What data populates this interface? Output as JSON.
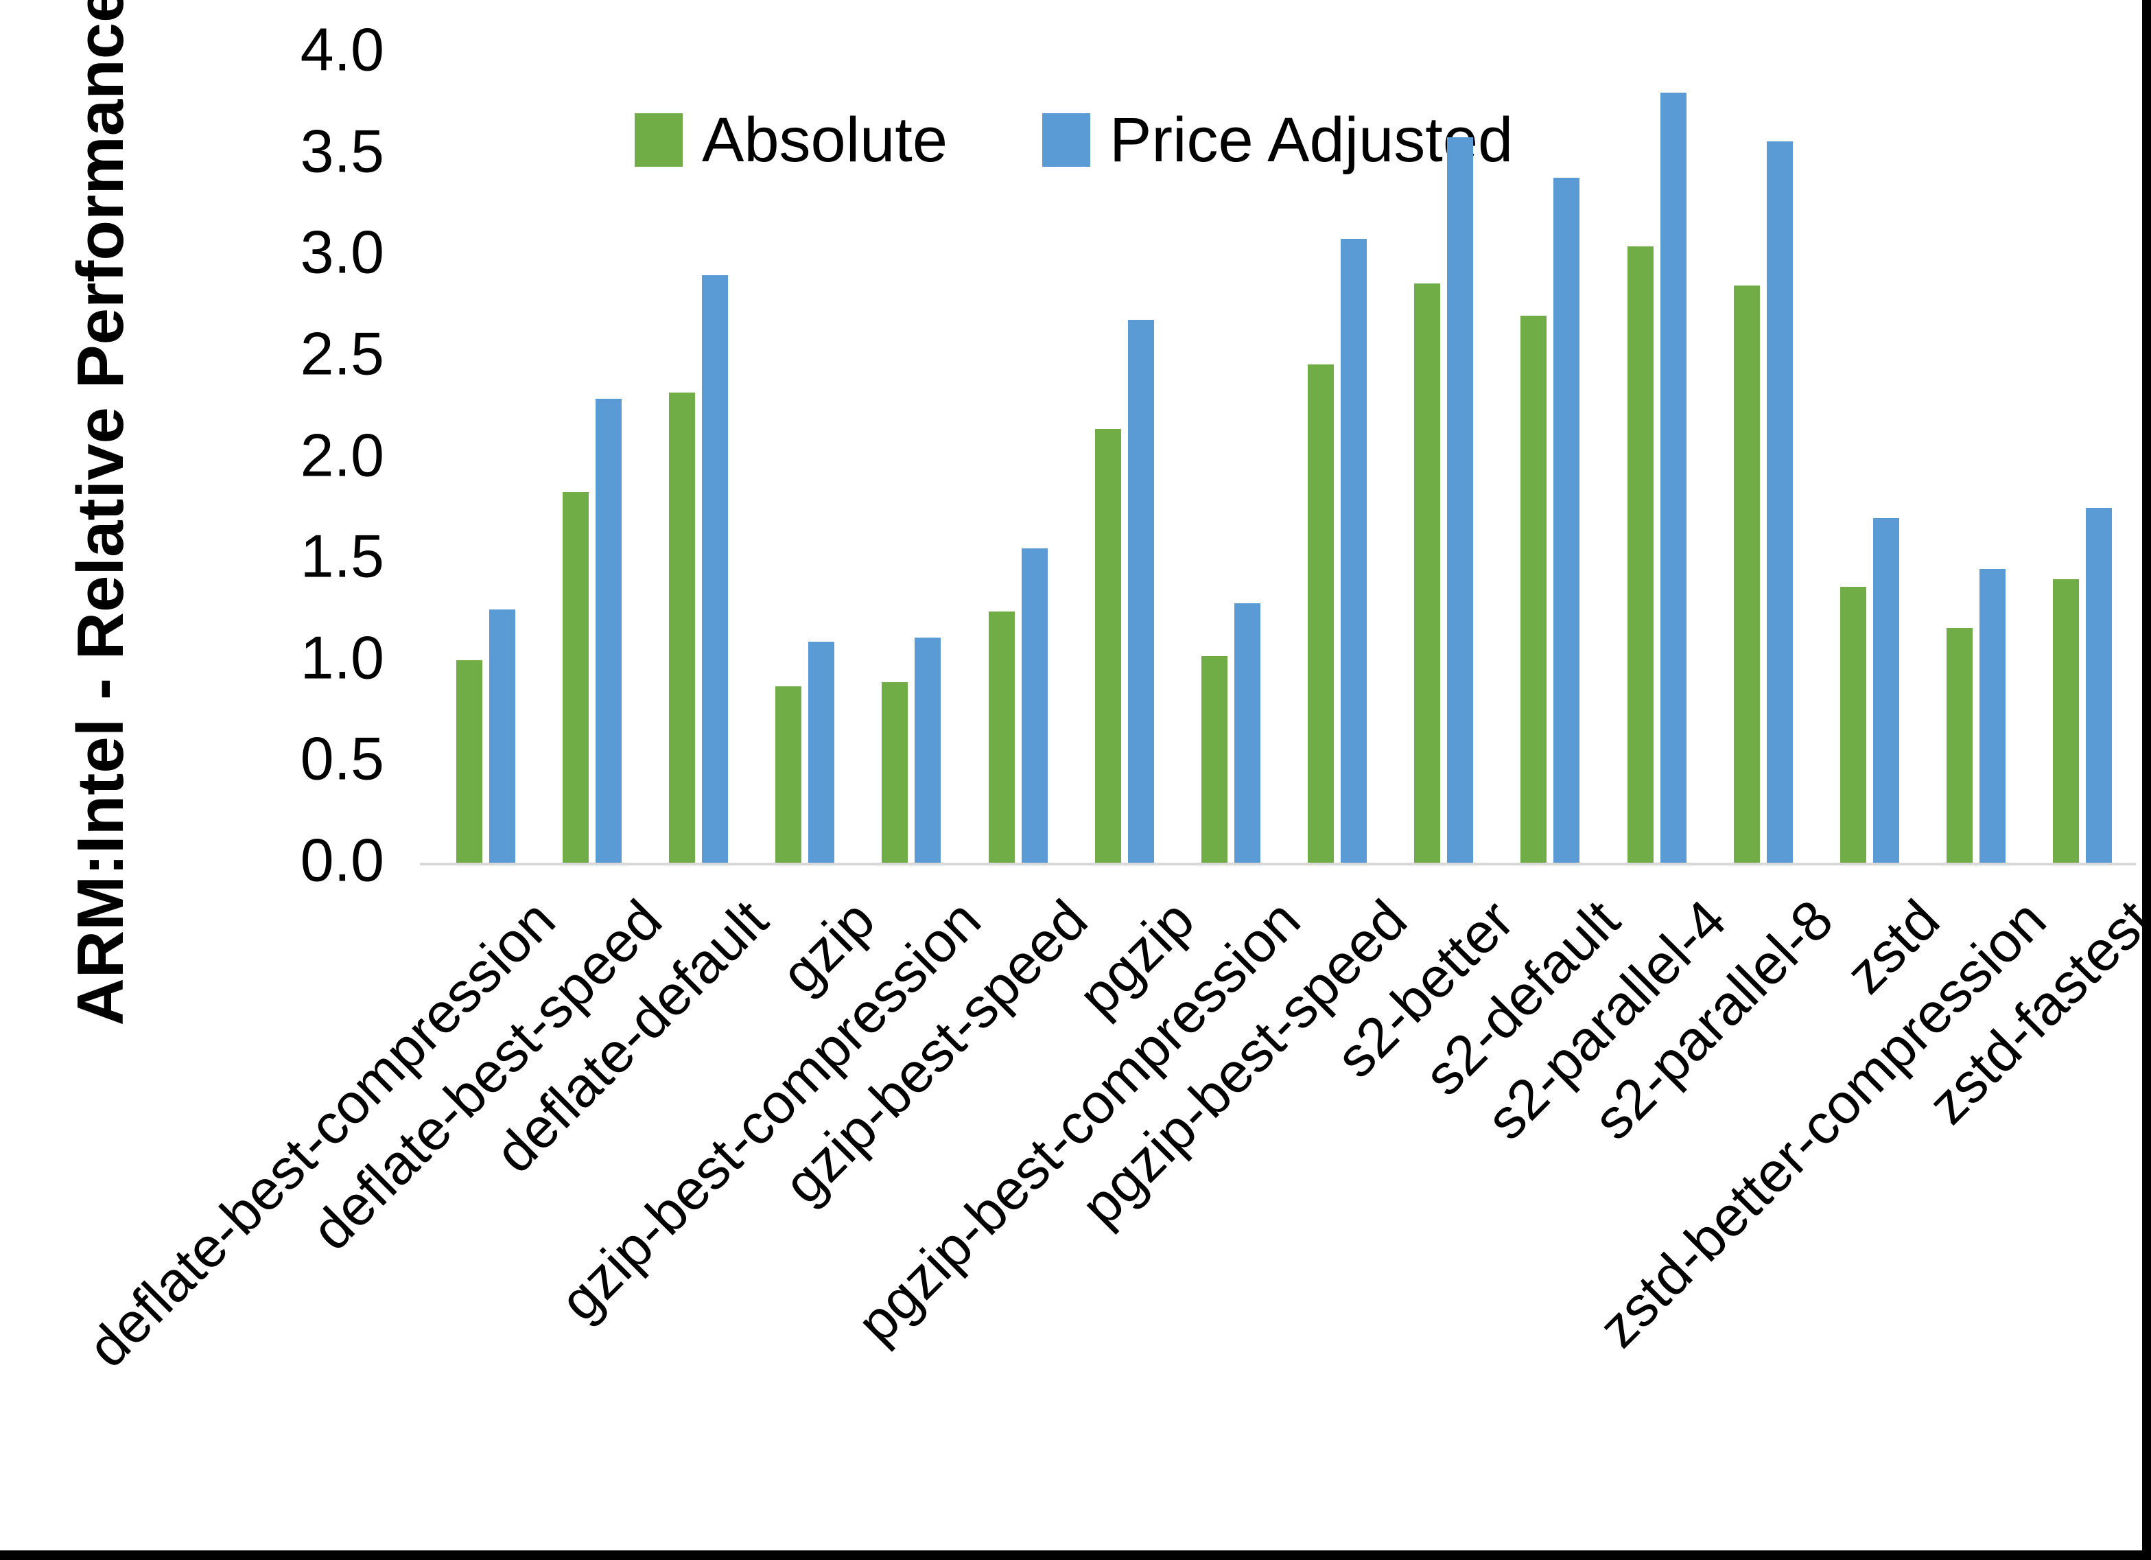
{
  "y_axis": {
    "title": "ARM:Intel - Relative Performance",
    "ticks": [
      "4.0",
      "3.5",
      "3.0",
      "2.5",
      "2.0",
      "1.5",
      "1.0",
      "0.5",
      "0.0"
    ],
    "min": 0.0,
    "max": 4.0
  },
  "legend": {
    "items": [
      {
        "label": "Absolute",
        "color": "#70AD47"
      },
      {
        "label": "Price Adjusted",
        "color": "#5B9BD5"
      }
    ],
    "position": "top"
  },
  "chart_data": {
    "type": "bar",
    "title": "",
    "xlabel": "",
    "ylabel": "ARM:Intel - Relative Performance",
    "ylim": [
      0.0,
      4.0
    ],
    "grid": false,
    "legend_position": "top",
    "categories": [
      "deflate-best-compression",
      "deflate-best-speed",
      "deflate-default",
      "gzip",
      "gzip-best-compression",
      "gzip-best-speed",
      "pgzip",
      "pgzip-best-compression",
      "pgzip-best-speed",
      "s2-better",
      "s2-default",
      "s2-parallel-4",
      "s2-parallel-8",
      "zstd",
      "zstd-better-compression",
      "zstd-fastest"
    ],
    "series": [
      {
        "name": "Absolute",
        "color": "#70AD47",
        "values": [
          1.0,
          1.83,
          2.32,
          0.87,
          0.89,
          1.24,
          2.14,
          1.02,
          2.46,
          2.86,
          2.7,
          3.04,
          2.85,
          1.36,
          1.16,
          1.4
        ]
      },
      {
        "name": "Price Adjusted",
        "color": "#5B9BD5",
        "values": [
          1.25,
          2.29,
          2.9,
          1.09,
          1.11,
          1.55,
          2.68,
          1.28,
          3.08,
          3.58,
          3.38,
          3.8,
          3.56,
          1.7,
          1.45,
          1.75
        ]
      }
    ]
  },
  "colors": {
    "background": "#FFFFFF",
    "axis_line": "#D9D9D9",
    "text": "#000000",
    "screenshot_border": "#000000"
  }
}
